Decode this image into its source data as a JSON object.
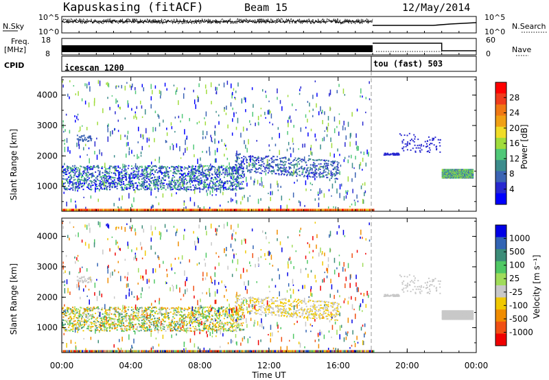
{
  "header": {
    "station": "Kapuskasing (fitACF)",
    "beam": "Beam 15",
    "date": "12/May/2014"
  },
  "nsky_panel": {
    "left_label": "N.Sky",
    "right_label": "N.Search",
    "left_ticks": [
      "10^5",
      "10^0"
    ],
    "right_ticks": [
      "10^5",
      "10^0"
    ]
  },
  "freq_panel": {
    "left_label_1": "Freq.",
    "left_label_2": "[MHz]",
    "right_label": "Nave",
    "left_ticks": [
      "18",
      "8"
    ],
    "right_ticks": [
      "60",
      "0"
    ]
  },
  "cpid_panel": {
    "label": "CPID",
    "segments": [
      "icescan 1200",
      "tou (fast) 503"
    ]
  },
  "power_colorbar": {
    "title": "Power [dB]",
    "ticks": [
      "28",
      "24",
      "20",
      "16",
      "12",
      "8",
      "4"
    ],
    "colors": [
      "#ff0000",
      "#f03c1c",
      "#f07814",
      "#f0a014",
      "#f0dc28",
      "#a0dc3c",
      "#50c878",
      "#3c8c8c",
      "#3c64b4",
      "#2828d0",
      "#0000ff"
    ]
  },
  "velocity_colorbar": {
    "title": "Velocity [m s⁻¹]",
    "ticks": [
      "1000",
      "500",
      "100",
      "25",
      "-25",
      "-100",
      "-500",
      "-1000"
    ],
    "colors": [
      "#0000e6",
      "#3264b4",
      "#3c8c78",
      "#50c864",
      "#a0dc5a",
      "#c8c8c8",
      "#f0c800",
      "#f08c00",
      "#f05014",
      "#f00000"
    ]
  },
  "chart_data": {
    "type": "heatmap",
    "xlabel": "Time UT",
    "ylabel": "Slant Range [km]",
    "x_ticks": [
      "00:00",
      "04:00",
      "08:00",
      "12:00",
      "16:00",
      "20:00",
      "00:00"
    ],
    "y_ticks": [
      "1000",
      "2000",
      "3000",
      "4000"
    ],
    "xlim_hours": [
      0,
      24
    ],
    "ylim_km": [
      180,
      4600
    ],
    "mode_change_hour": 18,
    "panels": [
      "Power [dB]",
      "Velocity [m s⁻¹]"
    ]
  }
}
